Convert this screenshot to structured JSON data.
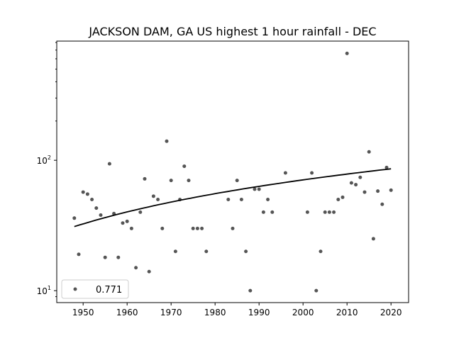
{
  "chart_data": {
    "type": "scatter",
    "title": "JACKSON DAM, GA US highest 1 hour rainfall - DEC",
    "xlabel": "",
    "ylabel": "",
    "xlim": [
      1944,
      2024
    ],
    "ylim": [
      8.1,
      820
    ],
    "yscale": "log",
    "x_ticks": [
      1950,
      1960,
      1970,
      1980,
      1990,
      2000,
      2010,
      2020
    ],
    "y_ticks": [
      {
        "value": 10,
        "label": "10^1"
      },
      {
        "value": 100,
        "label": "10^2"
      }
    ],
    "legend": {
      "placement": "lower-left",
      "entries": [
        "0.771"
      ]
    },
    "point_color": "#555555",
    "trend_color": "#000000",
    "series": [
      {
        "name": "0.771",
        "x": [
          1948,
          1949,
          1950,
          1951,
          1952,
          1953,
          1954,
          1955,
          1956,
          1957,
          1958,
          1959,
          1960,
          1961,
          1962,
          1963,
          1964,
          1965,
          1966,
          1967,
          1968,
          1969,
          1970,
          1971,
          1972,
          1973,
          1974,
          1975,
          1976,
          1977,
          1978,
          1983,
          1984,
          1985,
          1986,
          1987,
          1988,
          1989,
          1990,
          1991,
          1992,
          1993,
          1996,
          2001,
          2002,
          2003,
          2004,
          2005,
          2006,
          2007,
          2008,
          2009,
          2010,
          2011,
          2012,
          2013,
          2014,
          2015,
          2016,
          2017,
          2018,
          2019,
          2020
        ],
        "y": [
          36,
          19,
          57,
          55,
          50,
          43,
          38,
          18,
          94,
          39,
          18,
          33,
          34,
          30,
          15,
          40,
          72,
          14,
          53,
          50,
          30,
          140,
          70,
          20,
          50,
          90,
          70,
          30,
          30,
          30,
          20,
          50,
          30,
          70,
          50,
          20,
          10,
          60,
          60,
          40,
          50,
          40,
          80,
          40,
          80,
          10,
          20,
          40,
          40,
          40,
          50,
          52,
          660,
          67,
          65,
          74,
          57,
          116,
          25,
          58,
          46,
          88,
          59
        ]
      }
    ],
    "trend": {
      "type": "linear",
      "x": [
        1948,
        2020
      ],
      "y": [
        31,
        86
      ]
    }
  }
}
